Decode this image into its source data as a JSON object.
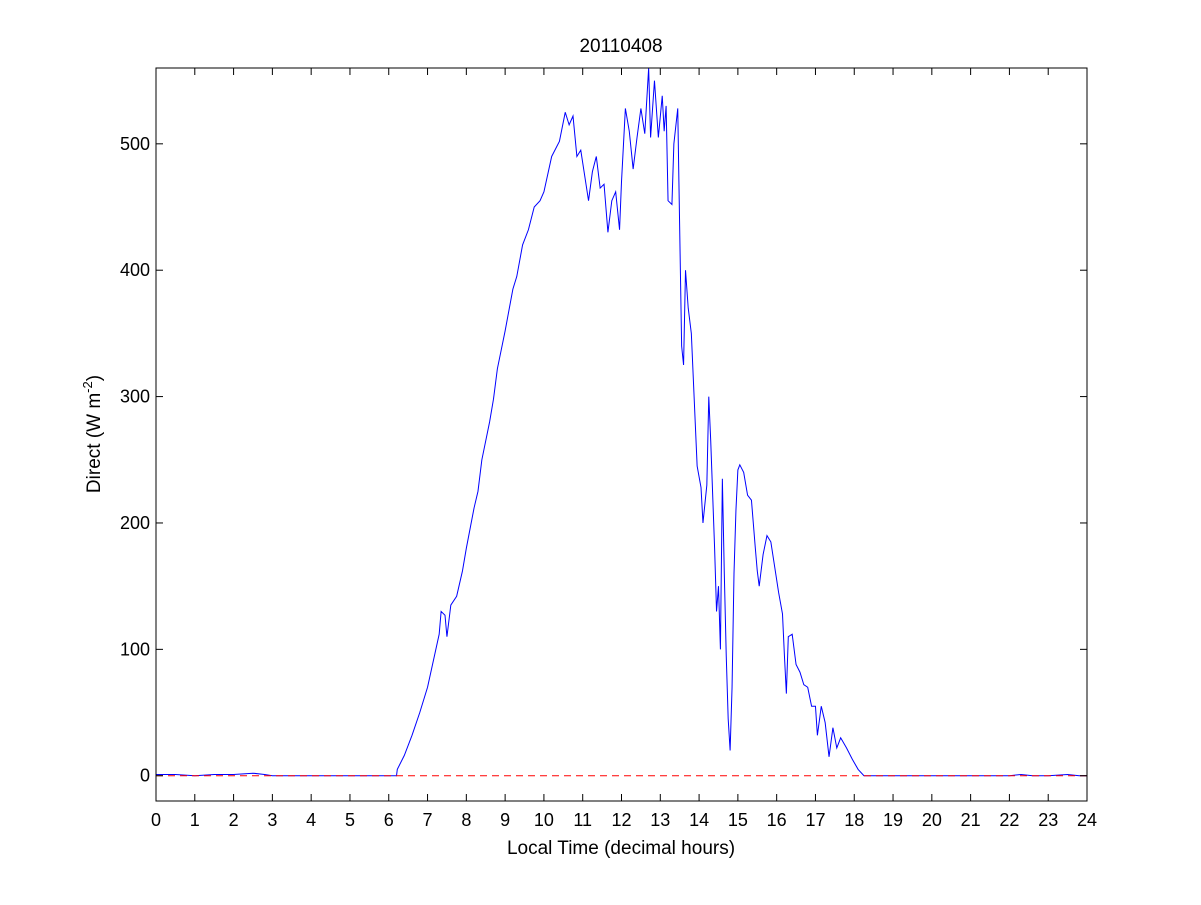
{
  "chart_data": {
    "type": "line",
    "title": "20110408",
    "xlabel": "Local Time (decimal hours)",
    "ylabel": {
      "prefix": "Direct (W m",
      "superscript": "-2",
      "suffix": ")"
    },
    "xlim": [
      0,
      24
    ],
    "ylim": [
      -20,
      560
    ],
    "x_ticks": [
      0,
      1,
      2,
      3,
      4,
      5,
      6,
      7,
      8,
      9,
      10,
      11,
      12,
      13,
      14,
      15,
      16,
      17,
      18,
      19,
      20,
      21,
      22,
      23,
      24
    ],
    "y_ticks": [
      0,
      100,
      200,
      300,
      400,
      500
    ],
    "grid": false,
    "legend": "none",
    "series": [
      {
        "style": "solid",
        "color": "#0000ff",
        "points": [
          [
            0.0,
            1
          ],
          [
            0.5,
            1
          ],
          [
            1.0,
            0
          ],
          [
            1.5,
            1
          ],
          [
            2.0,
            1
          ],
          [
            2.5,
            2
          ],
          [
            2.8,
            1
          ],
          [
            3.0,
            0
          ],
          [
            4.0,
            0
          ],
          [
            5.0,
            0
          ],
          [
            6.0,
            0
          ],
          [
            6.2,
            0
          ],
          [
            6.22,
            5
          ],
          [
            6.4,
            16
          ],
          [
            6.6,
            32
          ],
          [
            6.8,
            50
          ],
          [
            7.0,
            70
          ],
          [
            7.2,
            98
          ],
          [
            7.3,
            112
          ],
          [
            7.35,
            130
          ],
          [
            7.45,
            127
          ],
          [
            7.5,
            110
          ],
          [
            7.6,
            135
          ],
          [
            7.75,
            142
          ],
          [
            7.9,
            162
          ],
          [
            8.0,
            180
          ],
          [
            8.2,
            212
          ],
          [
            8.3,
            225
          ],
          [
            8.4,
            250
          ],
          [
            8.6,
            280
          ],
          [
            8.7,
            298
          ],
          [
            8.8,
            322
          ],
          [
            9.0,
            352
          ],
          [
            9.2,
            385
          ],
          [
            9.3,
            395
          ],
          [
            9.45,
            420
          ],
          [
            9.6,
            432
          ],
          [
            9.75,
            450
          ],
          [
            9.9,
            455
          ],
          [
            10.0,
            462
          ],
          [
            10.2,
            490
          ],
          [
            10.4,
            502
          ],
          [
            10.55,
            525
          ],
          [
            10.65,
            515
          ],
          [
            10.75,
            522
          ],
          [
            10.85,
            490
          ],
          [
            10.95,
            495
          ],
          [
            11.05,
            475
          ],
          [
            11.15,
            455
          ],
          [
            11.25,
            478
          ],
          [
            11.35,
            490
          ],
          [
            11.45,
            465
          ],
          [
            11.55,
            468
          ],
          [
            11.65,
            430
          ],
          [
            11.75,
            455
          ],
          [
            11.85,
            462
          ],
          [
            11.95,
            432
          ],
          [
            12.0,
            470
          ],
          [
            12.1,
            528
          ],
          [
            12.2,
            510
          ],
          [
            12.3,
            480
          ],
          [
            12.4,
            505
          ],
          [
            12.5,
            528
          ],
          [
            12.6,
            508
          ],
          [
            12.7,
            560
          ],
          [
            12.75,
            505
          ],
          [
            12.85,
            550
          ],
          [
            12.95,
            505
          ],
          [
            13.05,
            538
          ],
          [
            13.1,
            510
          ],
          [
            13.15,
            530
          ],
          [
            13.2,
            455
          ],
          [
            13.3,
            452
          ],
          [
            13.35,
            500
          ],
          [
            13.45,
            528
          ],
          [
            13.48,
            470
          ],
          [
            13.55,
            340
          ],
          [
            13.6,
            325
          ],
          [
            13.65,
            400
          ],
          [
            13.72,
            370
          ],
          [
            13.8,
            350
          ],
          [
            13.9,
            280
          ],
          [
            13.95,
            245
          ],
          [
            14.05,
            228
          ],
          [
            14.1,
            200
          ],
          [
            14.2,
            230
          ],
          [
            14.25,
            300
          ],
          [
            14.3,
            265
          ],
          [
            14.4,
            180
          ],
          [
            14.45,
            130
          ],
          [
            14.5,
            150
          ],
          [
            14.55,
            100
          ],
          [
            14.6,
            235
          ],
          [
            14.65,
            160
          ],
          [
            14.7,
            95
          ],
          [
            14.75,
            45
          ],
          [
            14.8,
            20
          ],
          [
            14.85,
            70
          ],
          [
            14.9,
            160
          ],
          [
            14.95,
            210
          ],
          [
            15.0,
            242
          ],
          [
            15.05,
            246
          ],
          [
            15.15,
            240
          ],
          [
            15.25,
            222
          ],
          [
            15.35,
            218
          ],
          [
            15.45,
            180
          ],
          [
            15.5,
            162
          ],
          [
            15.55,
            150
          ],
          [
            15.65,
            175
          ],
          [
            15.75,
            190
          ],
          [
            15.85,
            185
          ],
          [
            15.95,
            165
          ],
          [
            16.05,
            145
          ],
          [
            16.15,
            128
          ],
          [
            16.2,
            95
          ],
          [
            16.25,
            65
          ],
          [
            16.3,
            110
          ],
          [
            16.4,
            112
          ],
          [
            16.5,
            88
          ],
          [
            16.6,
            82
          ],
          [
            16.7,
            72
          ],
          [
            16.8,
            70
          ],
          [
            16.9,
            55
          ],
          [
            17.0,
            55
          ],
          [
            17.05,
            32
          ],
          [
            17.15,
            55
          ],
          [
            17.25,
            42
          ],
          [
            17.35,
            15
          ],
          [
            17.45,
            38
          ],
          [
            17.55,
            22
          ],
          [
            17.65,
            30
          ],
          [
            17.8,
            22
          ],
          [
            17.95,
            13
          ],
          [
            18.1,
            5
          ],
          [
            18.25,
            0
          ],
          [
            19.0,
            0
          ],
          [
            20.0,
            0
          ],
          [
            21.0,
            0
          ],
          [
            22.0,
            0
          ],
          [
            22.3,
            1
          ],
          [
            22.6,
            0
          ],
          [
            23.0,
            0
          ],
          [
            23.5,
            1
          ],
          [
            23.8,
            0
          ],
          [
            24.0,
            0
          ]
        ]
      },
      {
        "style": "dashed",
        "color": "#ff0000",
        "points": [
          [
            0,
            0
          ],
          [
            24,
            0
          ]
        ]
      }
    ]
  }
}
